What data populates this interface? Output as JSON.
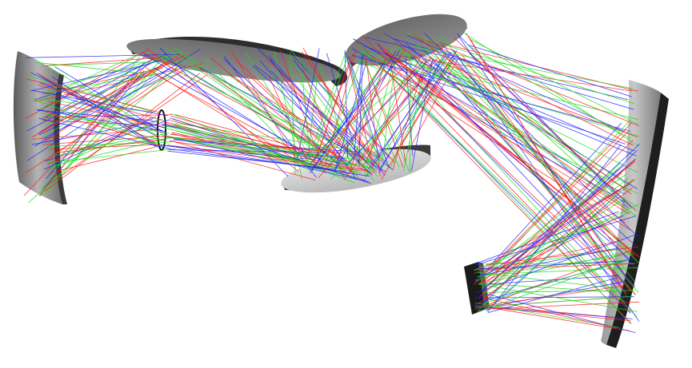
{
  "ray_colors": {
    "red": "#ff1a1a",
    "green": "#1adc1a",
    "blue": "#2222ff"
  },
  "optics": [
    {
      "kind": "concave-mirror",
      "name": "left-mirror"
    },
    {
      "kind": "flat-mirror",
      "name": "upper-left-fold-mirror"
    },
    {
      "kind": "aperture-stop",
      "name": "aperture-stop"
    },
    {
      "kind": "flat-mirror",
      "name": "lower-center-fold-mirror"
    },
    {
      "kind": "flat-mirror",
      "name": "upper-right-fold-mirror"
    },
    {
      "kind": "concave-mirror",
      "name": "right-mirror"
    },
    {
      "kind": "detector",
      "name": "image-plane"
    }
  ]
}
